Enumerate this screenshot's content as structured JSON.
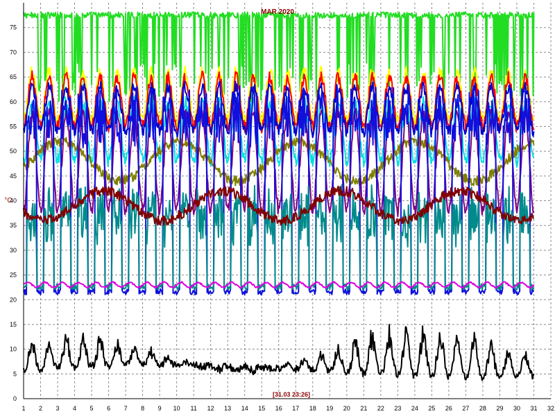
{
  "chart_data": {
    "type": "line",
    "title": "MAR 2020",
    "ylabel": "°C",
    "timestamp": "[31.03 23:26]",
    "xlim": [
      1,
      32
    ],
    "ylim": [
      0,
      80
    ],
    "x_ticks": [
      "1",
      "2",
      "3",
      "4",
      "5",
      "6",
      "7",
      "8",
      "9",
      "10",
      "11",
      "12",
      "13",
      "14",
      "15",
      "16",
      "17",
      "18",
      "19",
      "20",
      "21",
      "22",
      "23",
      "24",
      "25",
      "26",
      "27",
      "28",
      "29",
      "30",
      "31",
      "32"
    ],
    "y_ticks": [
      "0",
      "5",
      "10",
      "15",
      "20",
      "25",
      "30",
      "35",
      "40",
      "45",
      "50",
      "55",
      "60",
      "65",
      "70",
      "75"
    ],
    "grid": true,
    "colors": {
      "grid": "#8a8a8a",
      "axis": "#000000",
      "title": "#8b0000",
      "ylabel": "#8b0000",
      "timestamp": "#8b0000"
    },
    "series": [
      {
        "color": "#22dd22",
        "kind": "green_top",
        "x": [
          1,
          31
        ],
        "y": [
          78,
          78
        ]
      },
      {
        "color": "#ffff00",
        "kind": "daily",
        "x": [
          1,
          31
        ],
        "y_min": 56,
        "y_peak": 66
      },
      {
        "color": "#ff0000",
        "kind": "daily",
        "x": [
          1,
          31
        ],
        "y_min": 55,
        "y_peak": 65
      },
      {
        "color": "#0000cc",
        "kind": "daily",
        "x": [
          1,
          31
        ],
        "y_min": 54,
        "y_peak": 63
      },
      {
        "color": "#00e0e0",
        "kind": "daily",
        "x": [
          1,
          31
        ],
        "y_min": 48,
        "y_peak": 60
      },
      {
        "color": "#7f7f00",
        "kind": "slow",
        "x": [
          1,
          31
        ],
        "y_min": 44,
        "y_peak": 52
      },
      {
        "color": "#800080",
        "kind": "daily",
        "x": [
          1,
          31
        ],
        "y_min": 38,
        "y_peak": 58
      },
      {
        "color": "#1010dd",
        "kind": "pulse",
        "x": [
          1,
          31
        ],
        "y_min": 21,
        "y_peak": 62
      },
      {
        "color": "#008b8b",
        "kind": "pulse",
        "x": [
          1,
          31
        ],
        "y_min": 22,
        "y_peak": 42
      },
      {
        "color": "#800000",
        "kind": "slow",
        "x": [
          1,
          31
        ],
        "y_min": 36,
        "y_peak": 42
      },
      {
        "color": "#dd00dd",
        "kind": "flat",
        "x": [
          1,
          31
        ],
        "y_min": 22.5,
        "y_peak": 23.5
      },
      {
        "color": "#000000",
        "kind": "outdoor",
        "x": [
          1,
          31
        ],
        "y_min": 4,
        "y_peak": 19
      }
    ]
  }
}
